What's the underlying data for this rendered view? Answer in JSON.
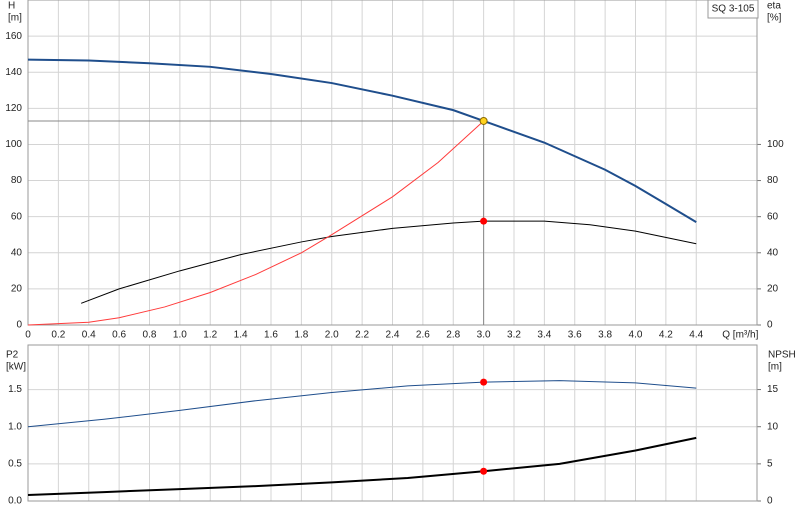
{
  "chart_data": [
    {
      "type": "line",
      "title": "SQ 3-105",
      "ylabel": [
        "H",
        "[m]"
      ],
      "y2label": [
        "eta",
        "[%]"
      ],
      "xlabel": "Q [m³/h]",
      "xlim": [
        0,
        4.8
      ],
      "xticks": [
        0,
        0.2,
        0.4,
        0.6,
        0.8,
        {
          "value": 1,
          "label": "1.0"
        },
        1.2,
        1.4,
        1.6,
        1.8,
        {
          "value": 2,
          "label": "2.0"
        },
        2.2,
        2.4,
        2.6,
        2.8,
        {
          "value": 3,
          "label": "3.0"
        },
        3.2,
        3.4,
        3.6,
        3.8,
        {
          "value": 4,
          "label": "4.0"
        },
        4.2,
        4.4
      ],
      "ylim": [
        0,
        180
      ],
      "yticks": [
        0,
        20,
        40,
        60,
        80,
        100,
        120,
        140,
        160
      ],
      "y2lim": [
        0,
        180
      ],
      "y2ticks": [
        0,
        20,
        40,
        60,
        80,
        100
      ],
      "grid": true,
      "series": [
        {
          "color": "#1f4e8c",
          "width": 2,
          "x": [
            0,
            0.4,
            0.8,
            1.2,
            1.6,
            2.0,
            2.4,
            2.8,
            3.0,
            3.4,
            3.8,
            4.0,
            4.2,
            4.4
          ],
          "values": [
            147,
            146.5,
            145,
            143,
            139,
            134,
            127,
            119,
            113,
            101,
            86,
            77,
            67,
            57
          ]
        },
        {
          "color": "#000000",
          "width": 1,
          "axis": "y2",
          "x": [
            0.35,
            0.6,
            1.0,
            1.4,
            1.8,
            2.0,
            2.4,
            2.8,
            3.0,
            3.4,
            3.7,
            4.0,
            4.4
          ],
          "values": [
            12,
            20,
            30,
            39,
            46,
            49,
            53.5,
            56.5,
            57.5,
            57.5,
            55.5,
            52,
            45
          ]
        },
        {
          "color": "#ff3b3b",
          "width": 1,
          "x": [
            0,
            0.4,
            0.6,
            0.9,
            1.2,
            1.5,
            1.8,
            2.0,
            2.4,
            2.7,
            3.0
          ],
          "values": [
            0,
            1.5,
            4,
            10,
            18,
            28,
            40,
            50,
            71,
            90,
            113
          ]
        }
      ],
      "points": [
        {
          "x": 3.0,
          "y": 113,
          "color": "#ffd21f",
          "crosshair": true
        },
        {
          "x": 3.0,
          "y": 57.5,
          "axis": "y2",
          "color": "#ff0000"
        }
      ]
    },
    {
      "type": "line",
      "ylabel": [
        "P2",
        "[kW]"
      ],
      "y2label": [
        "NPSH",
        "[m]"
      ],
      "xlim": [
        0,
        4.8
      ],
      "xticks": [
        0,
        0.2,
        0.4,
        0.6,
        0.8,
        1,
        1.2,
        1.4,
        1.6,
        1.8,
        2,
        2.2,
        2.4,
        2.6,
        2.8,
        3,
        3.2,
        3.4,
        3.6,
        3.8,
        4,
        4.2,
        4.4
      ],
      "ylim": [
        0,
        2.1
      ],
      "yticks": [
        {
          "value": 0,
          "label": "0.0"
        },
        0.5,
        {
          "value": 1,
          "label": "1.0"
        },
        1.5
      ],
      "y2lim": [
        0,
        21
      ],
      "y2ticks": [
        0,
        5,
        10,
        15
      ],
      "grid": true,
      "series": [
        {
          "color": "#1f4e8c",
          "width": 1,
          "x": [
            0,
            0.5,
            1.0,
            1.5,
            2.0,
            2.5,
            3.0,
            3.5,
            4.0,
            4.4
          ],
          "values": [
            1.0,
            1.1,
            1.22,
            1.35,
            1.46,
            1.55,
            1.6,
            1.62,
            1.59,
            1.52
          ]
        },
        {
          "color": "#000000",
          "width": 2,
          "axis": "y2",
          "x": [
            0,
            0.5,
            1.0,
            1.5,
            2.0,
            2.5,
            3.0,
            3.5,
            4.0,
            4.4
          ],
          "values": [
            0.8,
            1.2,
            1.6,
            2.0,
            2.5,
            3.1,
            4.0,
            5.0,
            6.8,
            8.5
          ]
        }
      ],
      "points": [
        {
          "x": 3.0,
          "y": 1.6,
          "color": "#ff0000"
        },
        {
          "x": 3.0,
          "y": 4.0,
          "axis": "y2",
          "color": "#ff0000"
        }
      ]
    }
  ]
}
